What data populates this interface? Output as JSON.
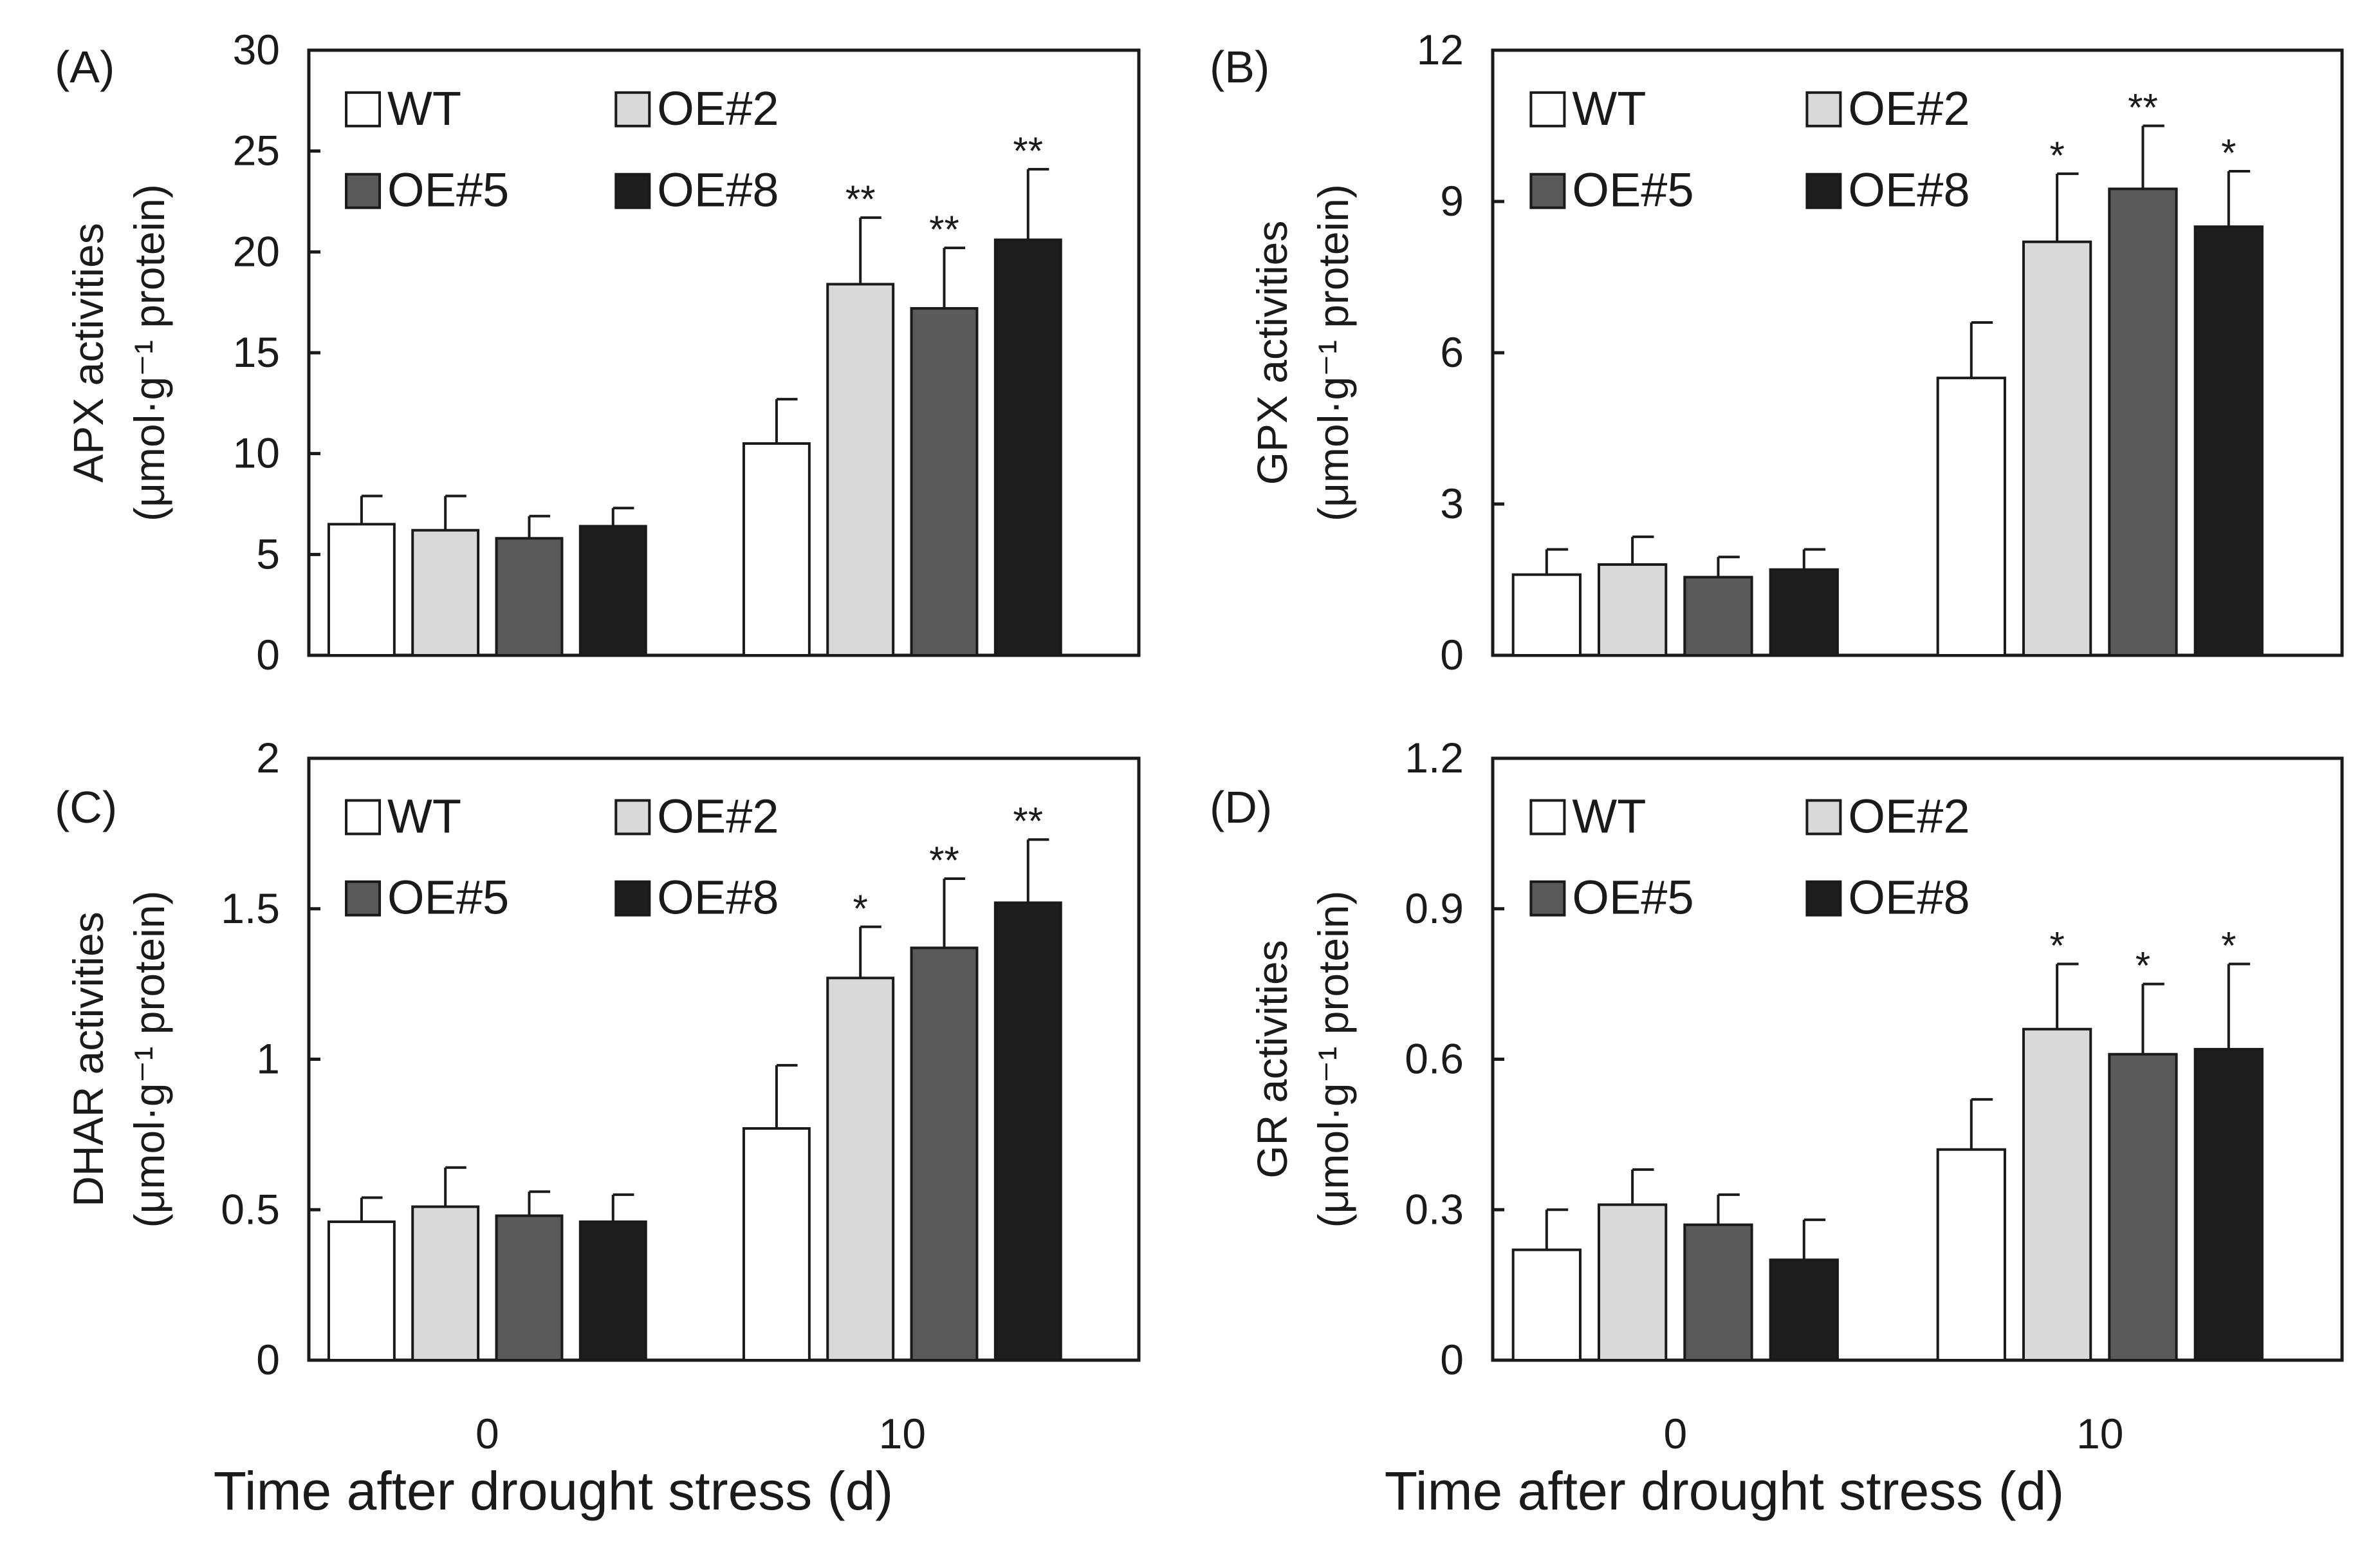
{
  "series_styles": [
    {
      "name": "WT",
      "color": "#ffffff"
    },
    {
      "name": "OE#2",
      "color": "#d9d9d9"
    },
    {
      "name": "OE#5",
      "color": "#5a5a5a"
    },
    {
      "name": "OE#8",
      "color": "#1e1e1e"
    }
  ],
  "x_title": "Time after drought stress (d)",
  "chart_data": [
    {
      "type": "bar",
      "panel_label": "(A)",
      "ylabel_line1": "APX activities",
      "ylabel_line2": "(μmol·g⁻¹ protein)",
      "categories": [
        "0",
        "10"
      ],
      "xlabel": "Time after drought stress (d)",
      "ylim": [
        0,
        30
      ],
      "yticks": [
        "0",
        "5",
        "10",
        "15",
        "20",
        "25",
        "30"
      ],
      "tick_values": [
        0,
        5,
        10,
        15,
        20,
        25,
        30
      ],
      "legend": [
        "WT",
        "OE#2",
        "OE#5",
        "OE#8"
      ],
      "series": [
        {
          "name": "WT",
          "values": [
            6.5,
            10.5
          ],
          "errors": [
            1.4,
            2.2
          ],
          "sig": [
            "",
            ""
          ]
        },
        {
          "name": "OE#2",
          "values": [
            6.2,
            18.4
          ],
          "errors": [
            1.7,
            3.3
          ],
          "sig": [
            "",
            "**"
          ]
        },
        {
          "name": "OE#5",
          "values": [
            5.8,
            17.2
          ],
          "errors": [
            1.1,
            3.0
          ],
          "sig": [
            "",
            "**"
          ]
        },
        {
          "name": "OE#8",
          "values": [
            6.4,
            20.6
          ],
          "errors": [
            0.9,
            3.5
          ],
          "sig": [
            "",
            "**"
          ]
        }
      ]
    },
    {
      "type": "bar",
      "panel_label": "(B)",
      "ylabel_line1": "GPX activities",
      "ylabel_line2": "(μmol·g⁻¹ protein)",
      "categories": [
        "0",
        "10"
      ],
      "xlabel": "Time after drought stress (d)",
      "ylim": [
        0,
        12
      ],
      "yticks": [
        "0",
        "3",
        "6",
        "9",
        "12"
      ],
      "tick_values": [
        0,
        3,
        6,
        9,
        12
      ],
      "legend": [
        "WT",
        "OE#2",
        "OE#5",
        "OE#8"
      ],
      "series": [
        {
          "name": "WT",
          "values": [
            1.6,
            5.5
          ],
          "errors": [
            0.5,
            1.1
          ],
          "sig": [
            "",
            ""
          ]
        },
        {
          "name": "OE#2",
          "values": [
            1.8,
            8.2
          ],
          "errors": [
            0.55,
            1.35
          ],
          "sig": [
            "",
            "*"
          ]
        },
        {
          "name": "OE#5",
          "values": [
            1.55,
            9.25
          ],
          "errors": [
            0.4,
            1.25
          ],
          "sig": [
            "",
            "**"
          ]
        },
        {
          "name": "OE#8",
          "values": [
            1.7,
            8.5
          ],
          "errors": [
            0.4,
            1.1
          ],
          "sig": [
            "",
            "*"
          ]
        }
      ]
    },
    {
      "type": "bar",
      "panel_label": "(C)",
      "ylabel_line1": "DHAR activities",
      "ylabel_line2": "(μmol·g⁻¹ protein)",
      "categories": [
        "0",
        "10"
      ],
      "xlabel": "Time after drought stress (d)",
      "ylim": [
        0,
        2
      ],
      "yticks": [
        "0",
        "0.5",
        "1",
        "1.5",
        "2"
      ],
      "tick_values": [
        0,
        0.5,
        1,
        1.5,
        2
      ],
      "legend": [
        "WT",
        "OE#2",
        "OE#5",
        "OE#8"
      ],
      "series": [
        {
          "name": "WT",
          "values": [
            0.46,
            0.77
          ],
          "errors": [
            0.08,
            0.21
          ],
          "sig": [
            "",
            ""
          ]
        },
        {
          "name": "OE#2",
          "values": [
            0.51,
            1.27
          ],
          "errors": [
            0.13,
            0.17
          ],
          "sig": [
            "",
            "*"
          ]
        },
        {
          "name": "OE#5",
          "values": [
            0.48,
            1.37
          ],
          "errors": [
            0.08,
            0.23
          ],
          "sig": [
            "",
            "**"
          ]
        },
        {
          "name": "OE#8",
          "values": [
            0.46,
            1.52
          ],
          "errors": [
            0.09,
            0.21
          ],
          "sig": [
            "",
            "**"
          ]
        }
      ]
    },
    {
      "type": "bar",
      "panel_label": "(D)",
      "ylabel_line1": "GR activities",
      "ylabel_line2": "(μmol·g⁻¹ protein)",
      "categories": [
        "0",
        "10"
      ],
      "xlabel": "Time after drought stress (d)",
      "ylim": [
        0,
        1.2
      ],
      "yticks": [
        "0",
        "0.3",
        "0.6",
        "0.9",
        "1.2"
      ],
      "tick_values": [
        0,
        0.3,
        0.6,
        0.9,
        1.2
      ],
      "legend": [
        "WT",
        "OE#2",
        "OE#5",
        "OE#8"
      ],
      "series": [
        {
          "name": "WT",
          "values": [
            0.22,
            0.42
          ],
          "errors": [
            0.08,
            0.1
          ],
          "sig": [
            "",
            ""
          ]
        },
        {
          "name": "OE#2",
          "values": [
            0.31,
            0.66
          ],
          "errors": [
            0.07,
            0.13
          ],
          "sig": [
            "",
            "*"
          ]
        },
        {
          "name": "OE#5",
          "values": [
            0.27,
            0.61
          ],
          "errors": [
            0.06,
            0.14
          ],
          "sig": [
            "",
            "*"
          ]
        },
        {
          "name": "OE#8",
          "values": [
            0.2,
            0.62
          ],
          "errors": [
            0.08,
            0.17
          ],
          "sig": [
            "",
            "*"
          ]
        }
      ]
    }
  ]
}
